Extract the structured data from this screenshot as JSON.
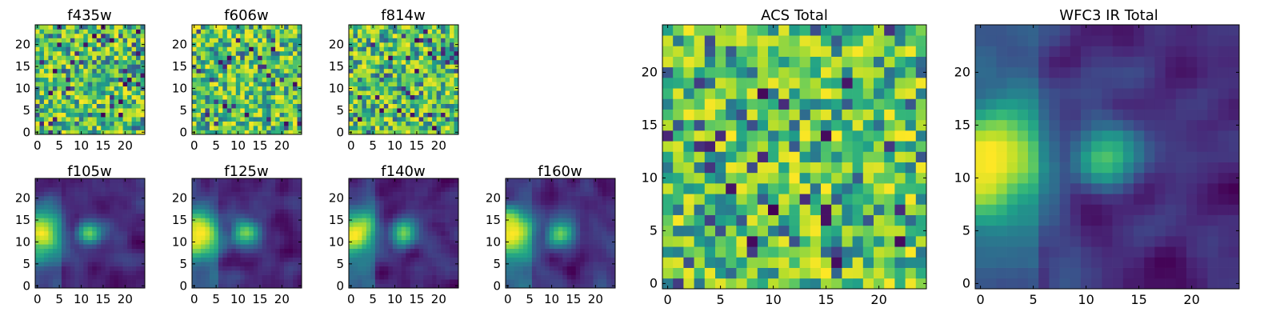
{
  "figure": {
    "panels": [
      {
        "title": "f435w"
      },
      {
        "title": "f606w"
      },
      {
        "title": "f814w"
      },
      {
        "title": "f105w"
      },
      {
        "title": "f125w"
      },
      {
        "title": "f140w"
      },
      {
        "title": "f160w"
      },
      {
        "title": "ACS Total"
      },
      {
        "title": "WFC3 IR Total"
      }
    ]
  },
  "chart_data": [
    {
      "type": "heatmap",
      "title": "f435w",
      "colormap": "viridis",
      "pattern": "noise",
      "grid_size": 25,
      "xlim": [
        0,
        24
      ],
      "ylim": [
        0,
        24
      ],
      "xticks": [
        0,
        5,
        10,
        15,
        20
      ],
      "yticks": [
        0,
        5,
        10,
        15,
        20
      ],
      "xtick_labels": [
        "0",
        "5",
        "10",
        "15",
        "20"
      ],
      "ytick_labels": [
        "0",
        "5",
        "10",
        "15",
        "20"
      ],
      "grid": false,
      "colorbar": false
    },
    {
      "type": "heatmap",
      "title": "f606w",
      "colormap": "viridis",
      "pattern": "noise",
      "grid_size": 25,
      "xlim": [
        0,
        24
      ],
      "ylim": [
        0,
        24
      ],
      "xticks": [
        0,
        5,
        10,
        15,
        20
      ],
      "yticks": [
        0,
        5,
        10,
        15,
        20
      ],
      "xtick_labels": [
        "0",
        "5",
        "10",
        "15",
        "20"
      ],
      "ytick_labels": [
        "0",
        "5",
        "10",
        "15",
        "20"
      ],
      "grid": false,
      "colorbar": false
    },
    {
      "type": "heatmap",
      "title": "f814w",
      "colormap": "viridis",
      "pattern": "noise",
      "grid_size": 25,
      "xlim": [
        0,
        24
      ],
      "ylim": [
        0,
        24
      ],
      "xticks": [
        0,
        5,
        10,
        15,
        20
      ],
      "yticks": [
        0,
        5,
        10,
        15,
        20
      ],
      "xtick_labels": [
        "0",
        "5",
        "10",
        "15",
        "20"
      ],
      "ytick_labels": [
        "0",
        "5",
        "10",
        "15",
        "20"
      ],
      "grid": false,
      "colorbar": false
    },
    {
      "type": "heatmap",
      "title": "f105w",
      "colormap": "viridis",
      "pattern": "smooth",
      "grid_size": 25,
      "xlim": [
        0,
        24
      ],
      "ylim": [
        0,
        24
      ],
      "xticks": [
        0,
        5,
        10,
        15,
        20
      ],
      "yticks": [
        0,
        5,
        10,
        15,
        20
      ],
      "xtick_labels": [
        "0",
        "5",
        "10",
        "15",
        "20"
      ],
      "ytick_labels": [
        "0",
        "5",
        "10",
        "15",
        "20"
      ],
      "grid": false,
      "colorbar": false
    },
    {
      "type": "heatmap",
      "title": "f125w",
      "colormap": "viridis",
      "pattern": "smooth",
      "grid_size": 25,
      "xlim": [
        0,
        24
      ],
      "ylim": [
        0,
        24
      ],
      "xticks": [
        0,
        5,
        10,
        15,
        20
      ],
      "yticks": [
        0,
        5,
        10,
        15,
        20
      ],
      "xtick_labels": [
        "0",
        "5",
        "10",
        "15",
        "20"
      ],
      "ytick_labels": [
        "0",
        "5",
        "10",
        "15",
        "20"
      ],
      "grid": false,
      "colorbar": false
    },
    {
      "type": "heatmap",
      "title": "f140w",
      "colormap": "viridis",
      "pattern": "smooth",
      "grid_size": 25,
      "xlim": [
        0,
        24
      ],
      "ylim": [
        0,
        24
      ],
      "xticks": [
        0,
        5,
        10,
        15,
        20
      ],
      "yticks": [
        0,
        5,
        10,
        15,
        20
      ],
      "xtick_labels": [
        "0",
        "5",
        "10",
        "15",
        "20"
      ],
      "ytick_labels": [
        "0",
        "5",
        "10",
        "15",
        "20"
      ],
      "grid": false,
      "colorbar": false
    },
    {
      "type": "heatmap",
      "title": "f160w",
      "colormap": "viridis",
      "pattern": "smooth",
      "grid_size": 25,
      "xlim": [
        0,
        24
      ],
      "ylim": [
        0,
        24
      ],
      "xticks": [
        0,
        5,
        10,
        15,
        20
      ],
      "yticks": [
        0,
        5,
        10,
        15,
        20
      ],
      "xtick_labels": [
        "0",
        "5",
        "10",
        "15",
        "20"
      ],
      "ytick_labels": [
        "0",
        "5",
        "10",
        "15",
        "20"
      ],
      "grid": false,
      "colorbar": false
    },
    {
      "type": "heatmap",
      "title": "ACS Total",
      "colormap": "viridis",
      "pattern": "noise",
      "grid_size": 25,
      "xlim": [
        0,
        24
      ],
      "ylim": [
        0,
        24
      ],
      "xticks": [
        0,
        5,
        10,
        15,
        20
      ],
      "yticks": [
        0,
        5,
        10,
        15,
        20
      ],
      "xtick_labels": [
        "0",
        "5",
        "10",
        "15",
        "20"
      ],
      "ytick_labels": [
        "0",
        "5",
        "10",
        "15",
        "20"
      ],
      "grid": false,
      "colorbar": false
    },
    {
      "type": "heatmap",
      "title": "WFC3 IR Total",
      "colormap": "viridis",
      "pattern": "smooth",
      "grid_size": 25,
      "xlim": [
        0,
        24
      ],
      "ylim": [
        0,
        24
      ],
      "xticks": [
        0,
        5,
        10,
        15,
        20
      ],
      "yticks": [
        0,
        5,
        10,
        15,
        20
      ],
      "xtick_labels": [
        "0",
        "5",
        "10",
        "15",
        "20"
      ],
      "ytick_labels": [
        "0",
        "5",
        "10",
        "15",
        "20"
      ],
      "grid": false,
      "colorbar": false
    }
  ]
}
